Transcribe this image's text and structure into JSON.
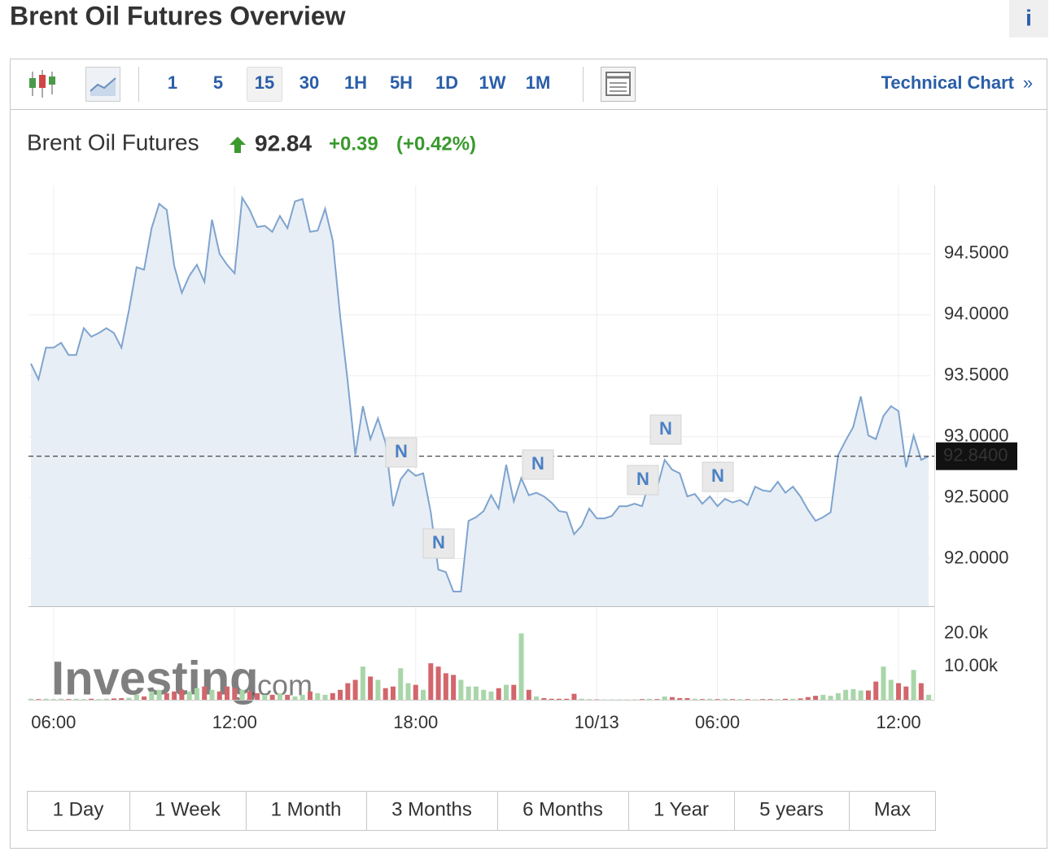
{
  "header": {
    "title": "Brent Oil Futures Overview",
    "info_icon": "i"
  },
  "toolbar": {
    "intervals": [
      {
        "label": "1",
        "active": false
      },
      {
        "label": "5",
        "active": false
      },
      {
        "label": "15",
        "active": true
      },
      {
        "label": "30",
        "active": false
      },
      {
        "label": "1H",
        "active": false
      },
      {
        "label": "5H",
        "active": false
      },
      {
        "label": "1D",
        "active": false
      },
      {
        "label": "1W",
        "active": false
      },
      {
        "label": "1M",
        "active": false
      }
    ],
    "technical_chart": "Technical Chart",
    "technical_chart_arrow": "»"
  },
  "quote": {
    "name": "Brent Oil Futures",
    "price": "92.84",
    "change": "+0.39",
    "change_pct": "(+0.42%)"
  },
  "news_markers": [
    "N",
    "N",
    "N",
    "N",
    "N",
    "N"
  ],
  "watermark": {
    "brand": "Investing",
    "suffix": ".com"
  },
  "chart_data": [
    {
      "type": "line",
      "color": "#7ea4cf",
      "grid": true,
      "categories": [
        null,
        null,
        null,
        "06:00",
        null,
        null,
        null,
        null,
        null,
        null,
        null,
        null,
        null,
        null,
        null,
        null,
        null,
        null,
        null,
        null,
        null,
        null,
        null,
        null,
        null,
        null,
        null,
        "12:00",
        null,
        null,
        null,
        null,
        null,
        null,
        null,
        null,
        null,
        null,
        null,
        null,
        null,
        null,
        null,
        null,
        null,
        null,
        null,
        null,
        null,
        null,
        null,
        "18:00",
        null,
        null,
        null,
        null,
        null,
        null,
        null,
        null,
        null,
        null,
        null,
        null,
        null,
        null,
        null,
        null,
        null,
        null,
        null,
        null,
        null,
        null,
        null,
        "10/13",
        null,
        null,
        null,
        null,
        null,
        null,
        null,
        null,
        null,
        null,
        null,
        null,
        null,
        null,
        null,
        "06:00",
        null,
        null,
        null,
        null,
        null,
        null,
        null,
        null,
        null,
        null,
        null,
        null,
        null,
        null,
        null,
        null,
        null,
        null,
        null,
        null,
        null,
        null,
        null,
        "12:00",
        null,
        null,
        null,
        null
      ],
      "values": [
        93.6,
        93.47,
        93.73,
        93.73,
        93.77,
        93.67,
        93.67,
        93.89,
        93.82,
        93.85,
        93.89,
        93.85,
        93.73,
        94.04,
        94.39,
        94.37,
        94.71,
        94.91,
        94.86,
        94.4,
        94.18,
        94.32,
        94.41,
        94.27,
        94.78,
        94.5,
        94.41,
        94.34,
        94.96,
        94.86,
        94.72,
        94.73,
        94.68,
        94.81,
        94.71,
        94.93,
        94.95,
        94.68,
        94.69,
        94.87,
        94.61,
        93.98,
        93.45,
        92.85,
        93.25,
        92.98,
        93.15,
        92.95,
        92.43,
        92.65,
        92.73,
        92.68,
        92.7,
        92.38,
        91.91,
        91.89,
        91.73,
        91.73,
        92.31,
        92.34,
        92.39,
        92.52,
        92.41,
        92.77,
        92.47,
        92.66,
        92.52,
        92.54,
        92.51,
        92.46,
        92.39,
        92.38,
        92.2,
        92.27,
        92.41,
        92.33,
        92.33,
        92.35,
        92.43,
        92.43,
        92.45,
        92.43,
        92.63,
        92.58,
        92.81,
        92.73,
        92.7,
        92.51,
        92.53,
        92.45,
        92.51,
        92.43,
        92.49,
        92.46,
        92.48,
        92.44,
        92.59,
        92.56,
        92.55,
        92.63,
        92.54,
        92.59,
        92.51,
        92.4,
        92.31,
        92.34,
        92.38,
        92.85,
        92.97,
        93.08,
        93.33,
        93.01,
        92.98,
        93.17,
        93.25,
        93.21,
        92.75,
        93.01,
        92.81,
        92.84
      ],
      "ylim": [
        91.61,
        95.06
      ],
      "yticks": [
        {
          "value": 92,
          "label": "92.0000"
        },
        {
          "value": 92.5,
          "label": "92.5000"
        },
        {
          "value": 93,
          "label": "93.0000"
        },
        {
          "value": 93.5,
          "label": "93.5000"
        },
        {
          "value": 94,
          "label": "94.0000"
        },
        {
          "value": 94.5,
          "label": "94.5000"
        }
      ],
      "last_price": {
        "value": 92.84,
        "label": "92.8400"
      }
    },
    {
      "type": "bar",
      "up_color": "#a9d6a9",
      "down_color": "#d2666c",
      "values": [
        300,
        200,
        300,
        200,
        300,
        200,
        300,
        200,
        300,
        200,
        300,
        400,
        500,
        600,
        1500,
        1000,
        2500,
        3000,
        2000,
        2500,
        3000,
        2500,
        3500,
        4000,
        3000,
        2500,
        4000,
        3500,
        3000,
        2500,
        2000,
        1500,
        1500,
        2000,
        1500,
        1000,
        1500,
        2500,
        2000,
        1500,
        2000,
        3000,
        5000,
        6000,
        10000,
        7000,
        6000,
        3500,
        4000,
        9500,
        5000,
        4500,
        3000,
        11000,
        10000,
        8000,
        7500,
        6000,
        4000,
        4000,
        3000,
        2500,
        3500,
        4500,
        4500,
        20000,
        3000,
        1000,
        500,
        300,
        300,
        300,
        1800,
        300,
        200,
        100,
        100,
        100,
        100,
        100,
        100,
        200,
        300,
        200,
        1000,
        800,
        500,
        500,
        300,
        200,
        300,
        200,
        300,
        200,
        200,
        200,
        100,
        200,
        200,
        200,
        300,
        300,
        400,
        800,
        1200,
        1500,
        1200,
        2000,
        3000,
        3200,
        2800,
        2800,
        5500,
        10000,
        6000,
        5000,
        4000,
        9000,
        5000,
        1500
      ],
      "ylim": [
        0,
        28200
      ],
      "yticks": [
        {
          "value": 10000,
          "label": "10.00k"
        },
        {
          "value": 20000,
          "label": "20.0k"
        }
      ]
    }
  ],
  "ranges": [
    "1 Day",
    "1 Week",
    "1 Month",
    "3 Months",
    "6 Months",
    "1 Year",
    "5 years",
    "Max"
  ]
}
